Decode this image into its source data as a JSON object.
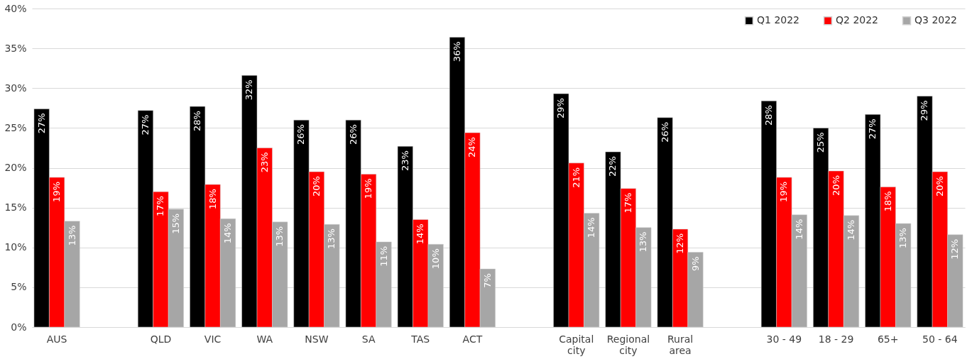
{
  "chart_data": {
    "type": "bar",
    "categories": [
      "AUS",
      null,
      "QLD",
      "VIC",
      "WA",
      "NSW",
      "SA",
      "TAS",
      "ACT",
      null,
      "Capital city",
      "Regional city",
      "Rural area",
      null,
      "30 - 49",
      "18 - 29",
      "65+",
      "50 - 64"
    ],
    "series": [
      {
        "name": "Q1 2022",
        "color": "#000000",
        "values": [
          27.4,
          null,
          27.2,
          27.7,
          31.6,
          26.0,
          26.0,
          22.7,
          36.4,
          null,
          29.3,
          22.0,
          26.3,
          null,
          28.4,
          25.0,
          26.7,
          29.0
        ],
        "value_labels": [
          "27%",
          null,
          "27%",
          "28%",
          "32%",
          "26%",
          "26%",
          "23%",
          "36%",
          null,
          "29%",
          "22%",
          "26%",
          null,
          "28%",
          "25%",
          "27%",
          "29%"
        ]
      },
      {
        "name": "Q2 2022",
        "color": "#ff0000",
        "values": [
          18.8,
          null,
          17.0,
          17.9,
          22.5,
          19.5,
          19.2,
          13.5,
          24.4,
          null,
          20.6,
          17.4,
          12.3,
          null,
          18.8,
          19.6,
          17.6,
          19.5
        ],
        "value_labels": [
          "19%",
          null,
          "17%",
          "18%",
          "23%",
          "20%",
          "19%",
          "14%",
          "24%",
          null,
          "21%",
          "17%",
          "12%",
          null,
          "19%",
          "20%",
          "18%",
          "20%"
        ]
      },
      {
        "name": "Q3 2022",
        "color": "#a6a6a6",
        "values": [
          13.3,
          null,
          14.8,
          13.6,
          13.2,
          12.9,
          10.7,
          10.4,
          7.3,
          null,
          14.3,
          12.5,
          9.4,
          null,
          14.1,
          14.0,
          13.0,
          11.6
        ],
        "value_labels": [
          "13%",
          null,
          "15%",
          "14%",
          "13%",
          "13%",
          "11%",
          "10%",
          "7%",
          null,
          "14%",
          "13%",
          "9%",
          null,
          "14%",
          "14%",
          "13%",
          "12%"
        ]
      }
    ],
    "ylim": [
      0,
      40
    ],
    "yticks": [
      {
        "value": 0,
        "label": "0%"
      },
      {
        "value": 5,
        "label": "5%"
      },
      {
        "value": 10,
        "label": "10%"
      },
      {
        "value": 15,
        "label": "15%"
      },
      {
        "value": 20,
        "label": "20%"
      },
      {
        "value": 25,
        "label": "25%"
      },
      {
        "value": 30,
        "label": "30%"
      },
      {
        "value": 35,
        "label": "35%"
      },
      {
        "value": 40,
        "label": "40%"
      }
    ],
    "grid": "y",
    "legend": "top right"
  }
}
